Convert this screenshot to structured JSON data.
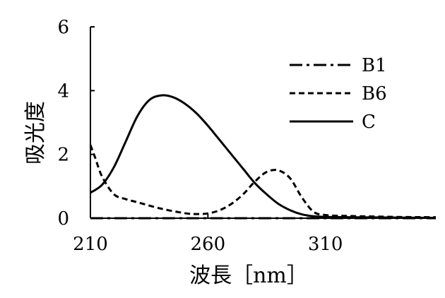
{
  "chart_data": {
    "type": "line",
    "title": "",
    "xlabel": "波長［nm］",
    "ylabel": "吸光度",
    "xlim": [
      210,
      357
    ],
    "ylim": [
      0,
      6
    ],
    "xticks": [
      210,
      260,
      310
    ],
    "yticks": [
      0,
      2,
      4,
      6
    ],
    "grid": false,
    "legend_position": "top-right",
    "series": [
      {
        "name": "B1",
        "style": "dash-dot",
        "x": [
          210,
          357
        ],
        "y": [
          0,
          0
        ]
      },
      {
        "name": "B6",
        "style": "dashed",
        "x": [
          210,
          212,
          215,
          220,
          225,
          230,
          240,
          250,
          255,
          260,
          265,
          270,
          275,
          280,
          285,
          290,
          295,
          300,
          305,
          310,
          320,
          340,
          357
        ],
        "y": [
          2.3,
          1.9,
          1.3,
          0.75,
          0.6,
          0.5,
          0.3,
          0.16,
          0.13,
          0.15,
          0.25,
          0.45,
          0.75,
          1.15,
          1.45,
          1.5,
          1.25,
          0.65,
          0.2,
          0.1,
          0.07,
          0.04,
          0.03
        ]
      },
      {
        "name": "C",
        "style": "solid",
        "x": [
          210,
          215,
          220,
          225,
          230,
          235,
          240,
          245,
          250,
          255,
          260,
          265,
          270,
          275,
          280,
          285,
          290,
          295,
          300,
          305,
          310,
          320,
          340,
          357
        ],
        "y": [
          0.8,
          1.05,
          1.6,
          2.4,
          3.2,
          3.7,
          3.85,
          3.8,
          3.6,
          3.3,
          2.9,
          2.45,
          2.0,
          1.55,
          1.1,
          0.75,
          0.45,
          0.25,
          0.12,
          0.06,
          0.04,
          0.03,
          0.02,
          0.01
        ]
      }
    ]
  }
}
